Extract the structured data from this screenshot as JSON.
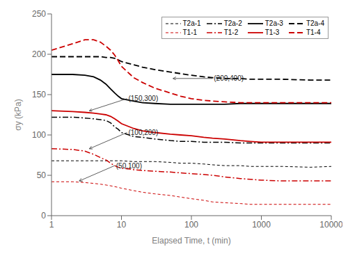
{
  "chart_data": {
    "type": "line",
    "title": "",
    "xlabel": "Elapsed Time, t (min)",
    "ylabel": "σy (kPa)",
    "log": "x",
    "xlim": [
      1,
      10000
    ],
    "xticks": [
      1,
      10,
      100,
      1000,
      10000
    ],
    "ylim": [
      0,
      250
    ],
    "yticks": [
      0,
      50,
      100,
      150,
      200,
      250
    ],
    "grid": false,
    "legend": "upper right",
    "annotations": [
      {
        "text": "(200,400)",
        "x": 55,
        "y": 170,
        "text_x": 200,
        "text_y": 170
      },
      {
        "text": "(150,300)",
        "x": 3.5,
        "y": 130,
        "text_x": 12,
        "text_y": 145
      },
      {
        "text": "(100,200)",
        "x": 3.5,
        "y": 83,
        "text_x": 12,
        "text_y": 103
      },
      {
        "text": "(50,100)",
        "x": 2.5,
        "y": 43,
        "text_x": 8,
        "text_y": 62
      }
    ],
    "series": [
      {
        "name": "T2a-1",
        "color": "black",
        "line_style": "dashed",
        "x": [
          1,
          2,
          3,
          4,
          5,
          6,
          7,
          8,
          9,
          10,
          15,
          20,
          30,
          50,
          70,
          100,
          150,
          200,
          300,
          500,
          700,
          1000,
          2000,
          5000,
          10000
        ],
        "values": [
          68,
          68,
          68,
          68,
          68,
          68,
          68,
          68,
          68,
          68,
          67,
          67,
          67,
          66,
          65,
          65,
          64,
          63,
          62,
          62,
          61,
          61,
          61,
          60,
          61
        ]
      },
      {
        "name": "T2a-2",
        "color": "black",
        "line_style": "dashdot",
        "x": [
          1,
          2,
          3,
          4,
          5,
          6,
          7,
          8,
          9,
          10,
          15,
          20,
          30,
          50,
          70,
          100,
          150,
          200,
          300,
          500,
          700,
          1000,
          2000,
          5000,
          10000
        ],
        "values": [
          122,
          122,
          121,
          120,
          119,
          118,
          115,
          110,
          107,
          103,
          98,
          97,
          95,
          93,
          92,
          92,
          91,
          91,
          91,
          90,
          90,
          90,
          90,
          90,
          90
        ]
      },
      {
        "name": "T2a-3",
        "color": "black",
        "line_style": "solid",
        "x": [
          1,
          2,
          3,
          4,
          5,
          6,
          7,
          8,
          9,
          10,
          15,
          20,
          30,
          50,
          70,
          100,
          150,
          200,
          300,
          500,
          700,
          1000,
          2000,
          5000,
          10000
        ],
        "values": [
          175,
          175,
          174,
          172,
          168,
          163,
          157,
          152,
          148,
          145,
          142,
          140,
          139,
          138,
          138,
          138,
          138,
          138,
          138,
          139,
          139,
          139,
          139,
          139,
          139
        ]
      },
      {
        "name": "T2a-4",
        "color": "black",
        "line_style": "longdashed",
        "x": [
          1,
          2,
          3,
          4,
          5,
          6,
          7,
          8,
          9,
          10,
          15,
          20,
          30,
          50,
          70,
          100,
          150,
          200,
          300,
          500,
          700,
          1000,
          2000,
          5000,
          10000
        ],
        "values": [
          197,
          197,
          197,
          197,
          197,
          196,
          196,
          195,
          193,
          191,
          187,
          184,
          181,
          178,
          176,
          174,
          172,
          171,
          170,
          170,
          169,
          169,
          169,
          168,
          168
        ]
      },
      {
        "name": "T1-1",
        "color": "#cc0000",
        "line_style": "dashed",
        "x": [
          1,
          2,
          3,
          4,
          5,
          6,
          7,
          8,
          9,
          10,
          15,
          20,
          30,
          50,
          70,
          100,
          150,
          200,
          300,
          500,
          700,
          1000,
          2000,
          5000,
          10000
        ],
        "values": [
          42,
          42,
          41,
          40,
          39,
          38,
          37,
          36,
          35,
          34,
          31,
          29,
          27,
          25,
          23,
          21,
          19,
          17,
          16,
          15,
          14,
          14,
          14,
          14,
          14
        ]
      },
      {
        "name": "T1-2",
        "color": "#cc0000",
        "line_style": "dashdot",
        "x": [
          1,
          2,
          3,
          4,
          5,
          6,
          7,
          8,
          9,
          10,
          15,
          20,
          30,
          50,
          70,
          100,
          150,
          200,
          300,
          500,
          700,
          1000,
          2000,
          5000,
          10000
        ],
        "values": [
          83,
          82,
          80,
          76,
          72,
          69,
          65,
          62,
          60,
          59,
          57,
          56,
          55,
          54,
          53,
          52,
          51,
          50,
          48,
          46,
          45,
          44,
          43,
          43,
          43
        ]
      },
      {
        "name": "T1-3",
        "color": "#cc0000",
        "line_style": "solid",
        "x": [
          1,
          2,
          3,
          4,
          5,
          6,
          7,
          8,
          9,
          10,
          15,
          20,
          30,
          50,
          70,
          100,
          150,
          200,
          300,
          500,
          700,
          1000,
          2000,
          5000,
          10000
        ],
        "values": [
          130,
          129,
          128,
          127,
          126,
          125,
          123,
          120,
          117,
          114,
          108,
          105,
          103,
          101,
          100,
          99,
          97,
          96,
          95,
          93,
          92,
          91,
          91,
          91,
          91
        ]
      },
      {
        "name": "T1-4",
        "color": "#cc0000",
        "line_style": "longdashed",
        "x": [
          1,
          2,
          3,
          4,
          5,
          6,
          7,
          8,
          9,
          10,
          15,
          20,
          30,
          50,
          70,
          100,
          150,
          200,
          300,
          500,
          700,
          1000,
          2000,
          5000,
          10000
        ],
        "values": [
          205,
          213,
          218,
          218,
          215,
          210,
          205,
          199,
          192,
          185,
          171,
          165,
          158,
          152,
          148,
          145,
          143,
          142,
          141,
          140,
          140,
          140,
          140,
          140,
          140
        ]
      }
    ]
  }
}
